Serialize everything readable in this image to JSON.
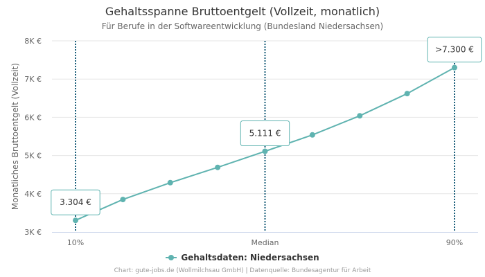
{
  "chart_data": {
    "type": "line",
    "title": "Gehaltsspanne Bruttoentgelt (Vollzeit, monatlich)",
    "subtitle": "Für Berufe in der Softwareentwicklung (Bundesland Niedersachsen)",
    "ylabel": "Monatliches Bruttoentgelt (Vollzeit)",
    "xlabel": "",
    "ylim": [
      3000,
      8000
    ],
    "y_ticks": [
      3000,
      4000,
      5000,
      6000,
      7000,
      8000
    ],
    "y_tick_labels": [
      "3K €",
      "4K €",
      "5K €",
      "6K €",
      "7K €",
      "8K €"
    ],
    "x_ticks": [
      {
        "index": 0,
        "label": "10%"
      },
      {
        "index": 4,
        "label": "Median"
      },
      {
        "index": 8,
        "label": "90%"
      }
    ],
    "grid": true,
    "legend_position": "bottom-center",
    "series": [
      {
        "name": "Gehaltsdaten: Niedersachsen",
        "color": "#5fb3b0",
        "values": [
          3304,
          3850,
          4290,
          4690,
          5111,
          5540,
          6040,
          6620,
          7300
        ]
      }
    ],
    "annotations": [
      {
        "index": 0,
        "text": "3.304 €"
      },
      {
        "index": 4,
        "text": "5.111 €"
      },
      {
        "index": 8,
        "text": ">7.300 €"
      }
    ],
    "reference_lines_color": "#1a5e7a",
    "credits": "Chart: gute-jobs.de (Wollmilchsau GmbH) | Datenquelle: Bundesagentur für Arbeit"
  }
}
